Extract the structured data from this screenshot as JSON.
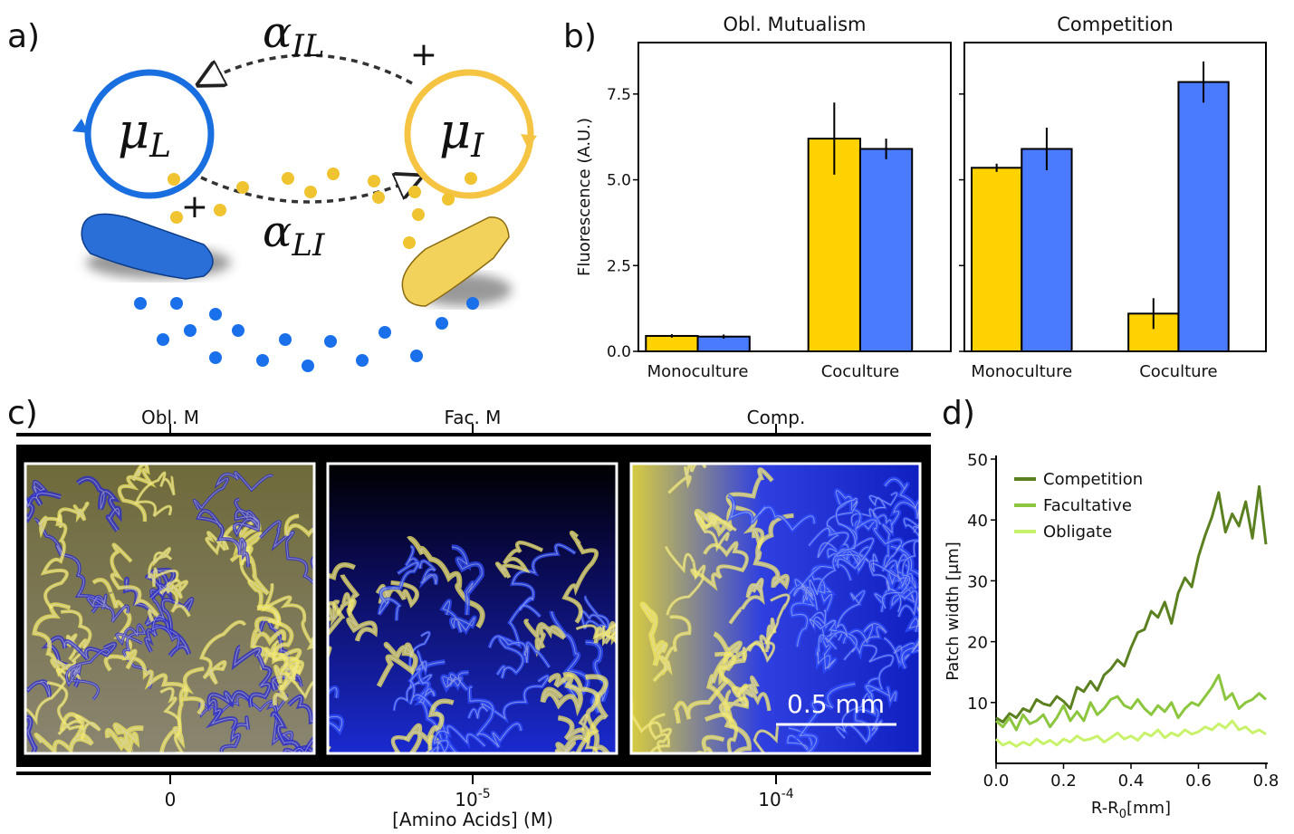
{
  "panel_labels": [
    "a)",
    "b)",
    "c)",
    "d)"
  ],
  "diagram": {
    "nodes": [
      {
        "symbol": "μ",
        "subscript": "L"
      },
      {
        "symbol": "μ",
        "subscript": "I"
      }
    ],
    "edges": [
      {
        "symbol": "α",
        "subscript": "IL",
        "sign": "+"
      },
      {
        "symbol": "α",
        "subscript": "LI",
        "sign": "+"
      }
    ]
  },
  "microscopy": {
    "top_labels": [
      "Obl. M",
      "Fac. M",
      "Comp."
    ],
    "x_ticks": [
      "0",
      {
        "base": "10",
        "exponent": "-5"
      },
      {
        "base": "10",
        "exponent": "-4"
      }
    ],
    "x_axis_label": "[Amino Acids] (M)",
    "scale_bar": "0.5 mm"
  },
  "chart_data": [
    {
      "type": "bar",
      "title": "Obl. Mutualism",
      "ylabel": "Fluorescence (A.U.)",
      "categories": [
        "Monoculture",
        "Coculture"
      ],
      "series": [
        {
          "color": "#ffd200",
          "values": [
            0.45,
            6.2
          ],
          "errors": [
            0.05,
            1.05
          ]
        },
        {
          "color": "#4a7bff",
          "values": [
            0.43,
            5.9
          ],
          "errors": [
            0.06,
            0.3
          ]
        }
      ],
      "ylim": [
        0,
        9.0
      ],
      "yticks": [
        {
          "value": 0,
          "label": "0.0"
        },
        2.5,
        {
          "value": 5,
          "label": "5.0"
        },
        7.5
      ],
      "ytick_labels": true
    },
    {
      "type": "bar",
      "title": "Competition",
      "categories": [
        "Monoculture",
        "Coculture"
      ],
      "series": [
        {
          "color": "#ffd200",
          "values": [
            5.35,
            1.1
          ],
          "errors": [
            0.12,
            0.45
          ]
        },
        {
          "color": "#4a7bff",
          "values": [
            5.9,
            7.85
          ],
          "errors": [
            0.62,
            0.6
          ]
        }
      ],
      "ylim": [
        0,
        9.0
      ],
      "yticks": [
        0,
        2.5,
        5,
        7.5
      ],
      "ytick_labels": false
    },
    {
      "type": "line",
      "ylabel": "Patch width [μm]",
      "xlabel": [
        "R-R",
        "0",
        "[mm]"
      ],
      "x": [
        0,
        0.02,
        0.04,
        0.06,
        0.08,
        0.1,
        0.12,
        0.14,
        0.16,
        0.18,
        0.2,
        0.22,
        0.24,
        0.26,
        0.28,
        0.3,
        0.32,
        0.34,
        0.36,
        0.38,
        0.4,
        0.42,
        0.44,
        0.46,
        0.48,
        0.5,
        0.52,
        0.54,
        0.56,
        0.58,
        0.6,
        0.62,
        0.64,
        0.66,
        0.68,
        0.7,
        0.72,
        0.74,
        0.76,
        0.78,
        0.8
      ],
      "series": [
        {
          "name": "Competition",
          "color": "#5b8020",
          "values": [
            7.5,
            6.8,
            8.2,
            7.5,
            9.0,
            8.5,
            10.5,
            9.8,
            9.5,
            11.0,
            10.2,
            9.0,
            12.5,
            11.8,
            13.5,
            12.0,
            14.5,
            15.5,
            17.0,
            16.0,
            19.0,
            21.5,
            22.0,
            25.0,
            24.0,
            26.5,
            23.0,
            28.0,
            30.5,
            29.0,
            34.0,
            37.5,
            40.5,
            44.5,
            38.0,
            41.0,
            39.0,
            43.0,
            37.0,
            45.5,
            36.0
          ]
        },
        {
          "name": "Facultative",
          "color": "#8cc63e",
          "values": [
            7.0,
            6.0,
            7.5,
            5.5,
            8.0,
            6.5,
            7.0,
            8.0,
            6.0,
            7.5,
            9.5,
            7.0,
            8.5,
            7.0,
            10.0,
            8.0,
            9.0,
            10.5,
            11.0,
            9.5,
            9.0,
            10.5,
            9.0,
            8.0,
            9.5,
            8.5,
            10.0,
            7.5,
            9.0,
            10.0,
            9.5,
            11.0,
            12.5,
            14.5,
            10.5,
            11.5,
            9.0,
            10.0,
            10.5,
            11.5,
            10.5
          ]
        },
        {
          "name": "Obligate",
          "color": "#c9f26b",
          "values": [
            4.0,
            3.0,
            3.5,
            2.8,
            3.5,
            3.0,
            4.0,
            3.2,
            3.8,
            3.0,
            4.0,
            3.5,
            4.5,
            3.8,
            4.0,
            4.5,
            3.5,
            4.2,
            5.0,
            4.0,
            4.5,
            3.8,
            5.0,
            4.5,
            5.5,
            4.2,
            5.0,
            4.5,
            5.5,
            4.8,
            5.2,
            6.0,
            5.5,
            6.5,
            5.8,
            7.0,
            5.5,
            6.0,
            5.0,
            5.5,
            4.8
          ]
        }
      ],
      "xlim": [
        0,
        0.8
      ],
      "ylim": [
        0,
        50
      ],
      "xticks": [
        {
          "value": 0,
          "label": "0.0"
        },
        0.2,
        0.4,
        0.6,
        0.8
      ],
      "yticks": [
        10,
        20,
        30,
        40,
        50
      ],
      "legend": "upper left"
    }
  ]
}
